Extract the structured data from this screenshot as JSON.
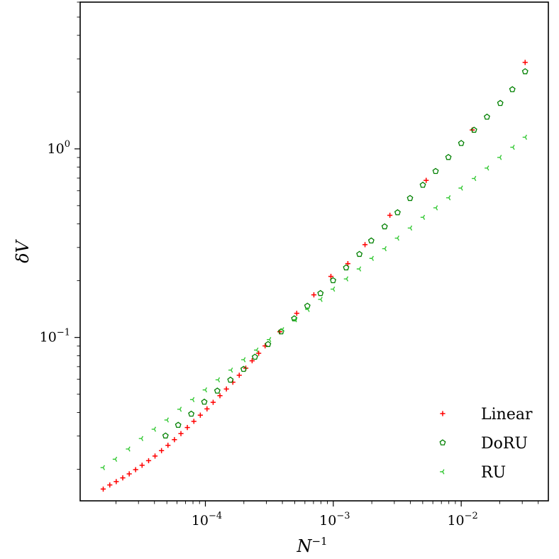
{
  "chart_data": {
    "type": "scatter",
    "xscale": "log",
    "yscale": "log",
    "xlim": [
      1.05e-05,
      0.048
    ],
    "ylim": [
      0.0136,
      6.0
    ],
    "xlabel": {
      "base": "N",
      "sup": "−1"
    },
    "ylabel": {
      "prefix": "δ",
      "var": "V"
    },
    "grid": false,
    "legend_position": "lower-right",
    "x_ticks": [
      {
        "value": 0.0001,
        "base": "10",
        "exp": "−4"
      },
      {
        "value": 0.001,
        "base": "10",
        "exp": "−3"
      },
      {
        "value": 0.01,
        "base": "10",
        "exp": "−2"
      }
    ],
    "y_ticks": [
      {
        "value": 0.1,
        "base": "10",
        "exp": "−1"
      },
      {
        "value": 1,
        "base": "10",
        "exp": "0"
      }
    ],
    "series": [
      {
        "name": "Linear",
        "marker": "plus",
        "color": "#ff0000",
        "x": [
          1.59e-05,
          1.79e-05,
          2.01e-05,
          2.26e-05,
          2.54e-05,
          2.85e-05,
          3.2e-05,
          3.6e-05,
          4.04e-05,
          4.54e-05,
          5.1e-05,
          5.73e-05,
          6.44e-05,
          7.23e-05,
          8.13e-05,
          9.13e-05,
          0.000103,
          0.000115,
          0.00013,
          0.000146,
          0.000164,
          0.000184,
          0.000207,
          0.000232,
          0.000261,
          0.000293,
          0.000382,
          0.000518,
          0.000705,
          0.000958,
          0.0013,
          0.00177,
          0.00277,
          0.00532,
          0.0122,
          0.0316
        ],
        "y": [
          0.0157,
          0.0165,
          0.0172,
          0.018,
          0.0189,
          0.0199,
          0.021,
          0.0222,
          0.0235,
          0.0251,
          0.0268,
          0.0287,
          0.0309,
          0.0333,
          0.0359,
          0.0387,
          0.0418,
          0.0453,
          0.0491,
          0.0533,
          0.0579,
          0.063,
          0.0687,
          0.0752,
          0.0824,
          0.0902,
          0.1072,
          0.1343,
          0.1682,
          0.2107,
          0.2464,
          0.3104,
          0.4445,
          0.6806,
          1.259,
          2.874
        ]
      },
      {
        "name": "DoRU",
        "marker": "pentagon",
        "color": "#008000",
        "x": [
          4.88e-05,
          6.13e-05,
          7.76e-05,
          9.81e-05,
          0.000124,
          0.000157,
          0.000199,
          0.000244,
          0.000309,
          0.000391,
          0.000495,
          0.000627,
          0.000794,
          0.000996,
          0.00126,
          0.0016,
          0.00198,
          0.00252,
          0.00318,
          0.00398,
          0.00501,
          0.00631,
          0.00794,
          0.01,
          0.0126,
          0.0159,
          0.0202,
          0.0251,
          0.0316
        ],
        "y": [
          0.0301,
          0.0343,
          0.0393,
          0.0455,
          0.0521,
          0.0595,
          0.0679,
          0.0788,
          0.092,
          0.1074,
          0.1259,
          0.1469,
          0.1714,
          0.2005,
          0.2345,
          0.2764,
          0.3258,
          0.3871,
          0.4597,
          0.5474,
          0.6429,
          0.7611,
          0.9028,
          1.071,
          1.259,
          1.477,
          1.747,
          2.066,
          2.572
        ]
      },
      {
        "name": "RU",
        "marker": "tri_left",
        "color": "#32c832",
        "x": [
          1.59e-05,
          1.98e-05,
          2.51e-05,
          3.17e-05,
          3.99e-05,
          5.02e-05,
          6.33e-05,
          7.97e-05,
          0.0001,
          0.000126,
          0.000159,
          0.0002,
          0.000252,
          0.000317,
          0.0004,
          0.000504,
          0.000634,
          0.000799,
          0.001,
          0.00127,
          0.0016,
          0.00201,
          0.00253,
          0.00318,
          0.00401,
          0.00505,
          0.00636,
          0.00801,
          0.01,
          0.0127,
          0.016,
          0.0201,
          0.0254,
          0.0317
        ],
        "y": [
          0.0204,
          0.0226,
          0.0256,
          0.0291,
          0.0326,
          0.0365,
          0.0416,
          0.0468,
          0.0527,
          0.0596,
          0.0671,
          0.0762,
          0.0857,
          0.0974,
          0.1099,
          0.1241,
          0.1407,
          0.1591,
          0.1804,
          0.2044,
          0.2308,
          0.2625,
          0.2955,
          0.3362,
          0.3804,
          0.4335,
          0.4867,
          0.5504,
          0.6196,
          0.6967,
          0.7911,
          0.9005,
          1.0196,
          1.153
        ]
      }
    ]
  }
}
